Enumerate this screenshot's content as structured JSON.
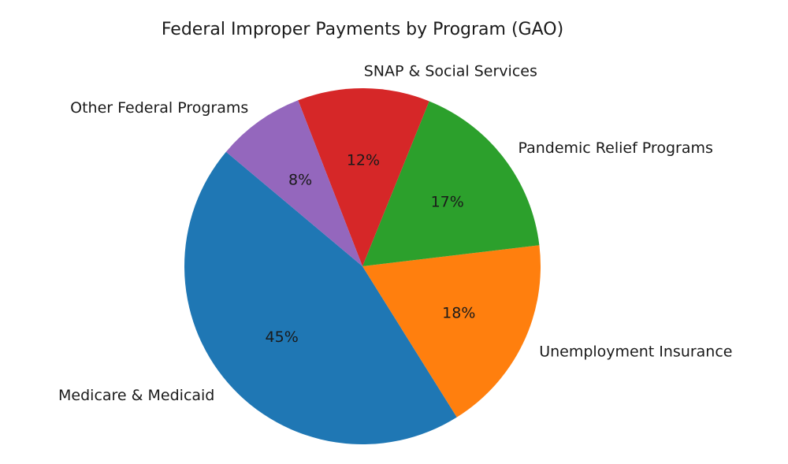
{
  "chart_data": {
    "type": "pie",
    "title": "Federal Improper Payments by Program (GAO)",
    "start_angle": 140,
    "counterclock": true,
    "slices": [
      {
        "label": "Medicare & Medicaid",
        "value": 45,
        "pct_label": "45%",
        "color": "#1f77b4"
      },
      {
        "label": "Unemployment Insurance",
        "value": 18,
        "pct_label": "18%",
        "color": "#ff7f0e"
      },
      {
        "label": "Pandemic Relief Programs",
        "value": 17,
        "pct_label": "17%",
        "color": "#2ca02c"
      },
      {
        "label": "SNAP & Social Services",
        "value": 12,
        "pct_label": "12%",
        "color": "#d62728"
      },
      {
        "label": "Other Federal Programs",
        "value": 8,
        "pct_label": "8%",
        "color": "#9467bd"
      }
    ],
    "legend": "none"
  }
}
